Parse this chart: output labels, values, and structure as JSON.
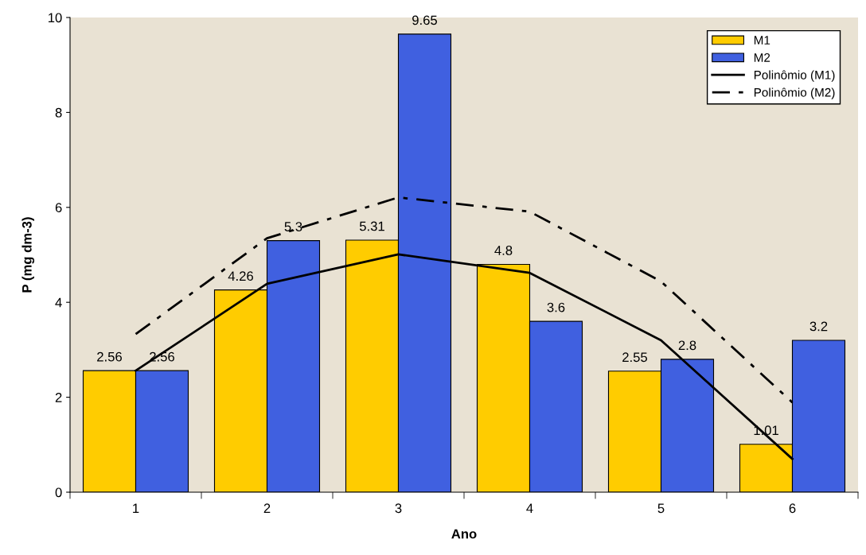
{
  "chart_data": {
    "type": "bar",
    "xlabel": "Ano",
    "ylabel": "P (mg dm-3)",
    "categories": [
      "1",
      "2",
      "3",
      "4",
      "5",
      "6"
    ],
    "series": [
      {
        "name": "M1",
        "color": "#ffcc00",
        "values": [
          2.56,
          4.26,
          5.31,
          4.8,
          2.55,
          1.01
        ],
        "value_labels": [
          "2.56",
          "4.26",
          "5.31",
          "4.8",
          "2.55",
          "1.01"
        ]
      },
      {
        "name": "M2",
        "color": "#4060e0",
        "values": [
          2.56,
          5.3,
          9.65,
          3.6,
          2.8,
          3.2
        ],
        "value_labels": [
          "2.56",
          "5.3",
          "9.65",
          "3.6",
          "2.8",
          "3.2"
        ]
      },
      {
        "name": "Polinômio (M1)",
        "type": "line",
        "color": "#000000",
        "line_style": "solid",
        "values": [
          2.56,
          4.39,
          5.01,
          4.62,
          3.2,
          0.7
        ]
      },
      {
        "name": "Polinômio (M2)",
        "type": "line",
        "color": "#000000",
        "line_style": "dashed",
        "values": [
          3.33,
          5.35,
          6.21,
          5.91,
          4.44,
          1.89
        ]
      }
    ],
    "ylim": [
      0,
      10
    ],
    "yticks": [
      0,
      2,
      4,
      6,
      8,
      10
    ],
    "grid": false,
    "legend": "top right"
  }
}
